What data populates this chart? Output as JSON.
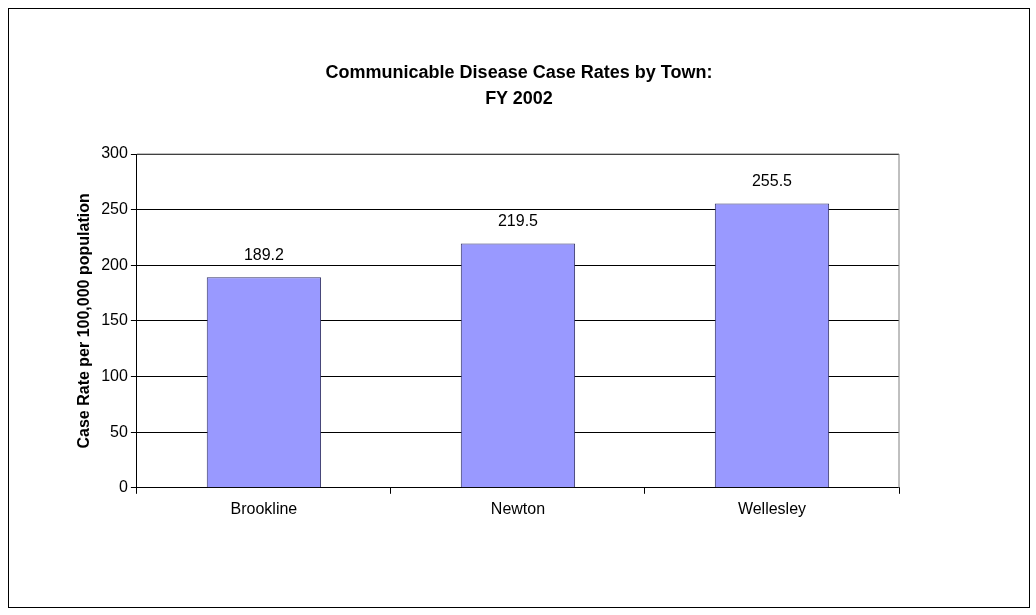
{
  "chart_data": {
    "type": "bar",
    "title": "Communicable Disease Case Rates by Town: FY 2002",
    "ylabel": "Case Rate per 100,000 population",
    "categories": [
      "Brookline",
      "Newton",
      "Wellesley"
    ],
    "values": [
      189.2,
      219.5,
      255.5
    ],
    "color": "#9999ff",
    "ylim": [
      0,
      300
    ],
    "yticks": [
      0,
      50,
      100,
      150,
      200,
      250,
      300
    ],
    "grid": "y",
    "legend": false,
    "data_labels": true
  }
}
